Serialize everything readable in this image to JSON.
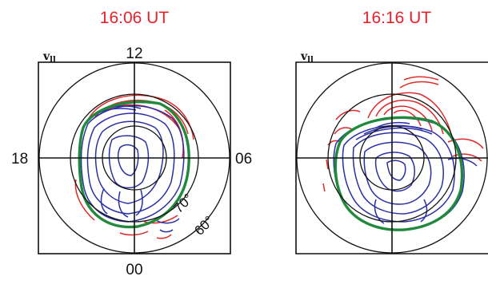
{
  "panels": [
    {
      "time": "16:06 UT",
      "quantity": "v",
      "labels": {
        "top": "12",
        "left": "18",
        "right": "06",
        "bottom": "00"
      },
      "lat_labels": [
        "70°",
        "60°"
      ]
    },
    {
      "time": "16:16 UT",
      "quantity": "v"
    }
  ],
  "colors": {
    "title": "#e8202a",
    "positive_contour": "#e02a2a",
    "negative_contour": "#2b2fa5",
    "boundary": "#1f8a3c",
    "axes": "#111111"
  }
}
